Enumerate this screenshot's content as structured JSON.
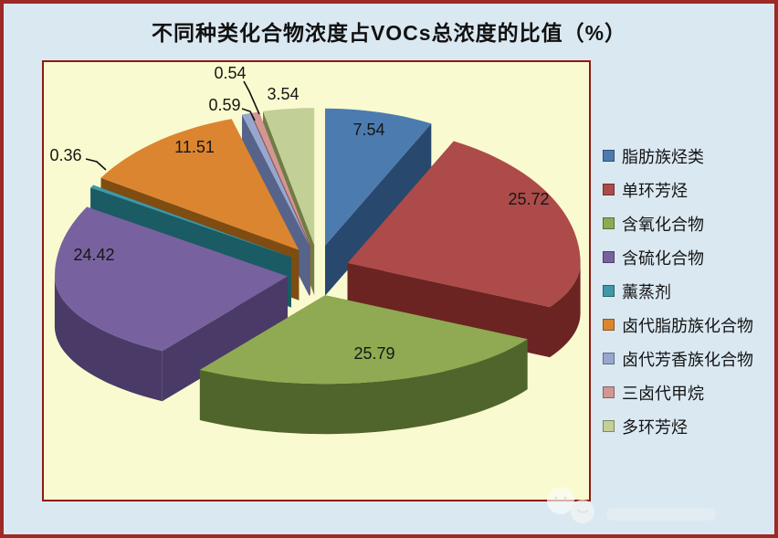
{
  "title": "不同种类化合物浓度占VOCs总浓度的比值（%）",
  "frame": {
    "outer_border_color": "#9D2A24",
    "background_color": "#DAE8F1",
    "plot_fill_color": "#FAFAD0",
    "plot_border_color": "#8C1B16"
  },
  "chart_data": {
    "type": "pie",
    "style": "3d-exploded",
    "title": "不同种类化合物浓度占VOCs总浓度的比值（%）",
    "unit": "%",
    "legend_position": "right",
    "start_angle_deg": 0,
    "direction": "clockwise",
    "series": [
      {
        "label": "脂肪族烃类",
        "value": 7.54,
        "color": "#4C7BB0",
        "dark": "#28486E"
      },
      {
        "label": "单环芳烃",
        "value": 25.72,
        "color": "#AC4B49",
        "dark": "#6B2422"
      },
      {
        "label": "含氧化合物",
        "value": 25.79,
        "color": "#8FAA52",
        "dark": "#50652C"
      },
      {
        "label": "含硫化合物",
        "value": 24.42,
        "color": "#77629F",
        "dark": "#4A3A68"
      },
      {
        "label": "薰蒸剂",
        "value": 0.36,
        "color": "#3E98A8",
        "dark": "#1A5B64"
      },
      {
        "label": "卤代脂肪族化合物",
        "value": 11.51,
        "color": "#DC8530",
        "dark": "#7F4C12"
      },
      {
        "label": "卤代芳香族化合物",
        "value": 0.59,
        "color": "#97A7CF",
        "dark": "#56648C"
      },
      {
        "label": "三卤代甲烷",
        "value": 0.54,
        "color": "#D29793",
        "dark": "#8F5855"
      },
      {
        "label": "多环芳烃",
        "value": 3.54,
        "color": "#C2CF96",
        "dark": "#6F7C45"
      }
    ],
    "data_labels": [
      "7.54",
      "25.72",
      "25.79",
      "24.42",
      "0.36",
      "11.51",
      "0.59",
      "0.54",
      "3.54"
    ]
  }
}
